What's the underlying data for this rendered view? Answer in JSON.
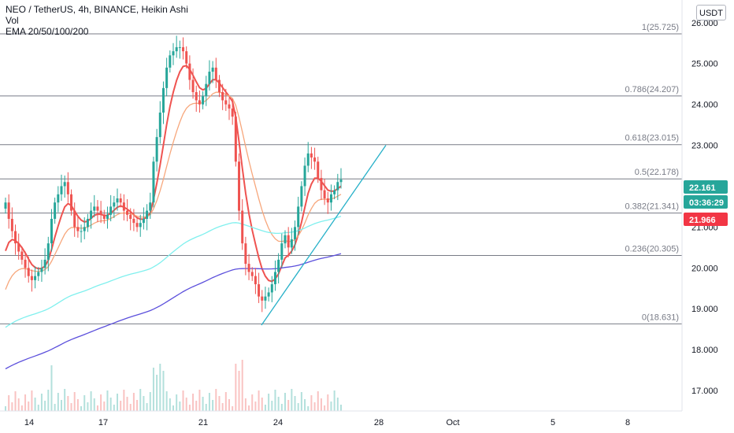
{
  "header": {
    "symbol_line": "NEO / TetherUS, 4h, BINANCE, Heikin Ashi",
    "vol_label": "Vol",
    "ema_label": "EMA 20/50/100/200"
  },
  "unit_button": "USDT",
  "price_axis_ticks": [
    "26.000",
    "25.000",
    "24.000",
    "23.000",
    "22.000",
    "21.000",
    "20.000",
    "19.000",
    "18.000",
    "17.000"
  ],
  "time_axis_ticks": [
    "14",
    "17",
    "21",
    "24",
    "28",
    "Oct",
    "5",
    "8"
  ],
  "fib_levels": [
    {
      "level": 1,
      "price": 25.725,
      "label": "1(25.725)"
    },
    {
      "level": 0.786,
      "price": 24.207,
      "label": "0.786(24.207)"
    },
    {
      "level": 0.618,
      "price": 23.015,
      "label": "0.618(23.015)"
    },
    {
      "level": 0.5,
      "price": 22.178,
      "label": "0.5(22.178)"
    },
    {
      "level": 0.382,
      "price": 21.341,
      "label": "0.382(21.341)"
    },
    {
      "level": 0.236,
      "price": 20.305,
      "label": "0.236(20.305)"
    },
    {
      "level": 0,
      "price": 18.631,
      "label": "0(18.631)"
    }
  ],
  "price_badges": [
    {
      "text": "22.161",
      "color": "#26a69a"
    },
    {
      "text": "03:36:29",
      "color": "#26a69a"
    },
    {
      "text": "21.966",
      "color": "#f23645"
    }
  ],
  "colors": {
    "up": "#26a69a",
    "down": "#ef5350",
    "ema20": "#ef5350",
    "ema50": "#f7a77c",
    "ema100": "#80f0ee",
    "ema200": "#5b4fdc",
    "trendline": "#26b0c8",
    "fib_line": "#787b86"
  },
  "chart_data": {
    "type": "candlestick",
    "title": "NEO / TetherUS, 4h, BINANCE, Heikin Ashi",
    "xlabel": "",
    "ylabel": "",
    "ylim": [
      16.5,
      26.4
    ],
    "x_ticks": [
      "14",
      "17",
      "21",
      "24",
      "28",
      "Oct",
      "5",
      "8"
    ],
    "grid": false,
    "candles_close": [
      21.6,
      21.2,
      20.9,
      20.6,
      20.4,
      20.2,
      20.0,
      19.8,
      19.7,
      19.8,
      19.9,
      20.0,
      20.2,
      20.6,
      21.2,
      21.6,
      21.8,
      22.0,
      22.1,
      21.8,
      21.4,
      21.0,
      20.9,
      20.9,
      21.0,
      21.2,
      21.4,
      21.5,
      21.4,
      21.3,
      21.2,
      21.3,
      21.5,
      21.6,
      21.7,
      21.6,
      21.4,
      21.3,
      21.2,
      21.1,
      21.0,
      21.1,
      21.2,
      21.4,
      21.6,
      22.6,
      23.2,
      23.8,
      24.4,
      24.9,
      25.2,
      25.3,
      25.4,
      25.4,
      25.3,
      25.0,
      24.6,
      24.3,
      24.1,
      24.0,
      24.2,
      24.5,
      24.8,
      24.9,
      24.6,
      24.3,
      24.1,
      24.0,
      23.9,
      23.7,
      22.6,
      21.4,
      20.6,
      20.1,
      19.9,
      19.8,
      19.6,
      19.3,
      19.2,
      19.3,
      19.4,
      19.6,
      19.9,
      20.2,
      20.6,
      20.8,
      20.5,
      20.7,
      21.0,
      21.5,
      22.0,
      22.5,
      22.8,
      22.7,
      22.6,
      22.2,
      21.9,
      21.7,
      21.6,
      21.8,
      21.9,
      22.1,
      22.16
    ],
    "ema_series": [
      {
        "name": "EMA 20",
        "start": 20.0,
        "end": 21.55
      },
      {
        "name": "EMA 50",
        "start": 19.2,
        "end": 21.55
      },
      {
        "name": "EMA 100",
        "start": 18.5,
        "end": 21.1
      },
      {
        "name": "EMA 200",
        "start": 17.5,
        "end": 19.9
      }
    ]
  }
}
